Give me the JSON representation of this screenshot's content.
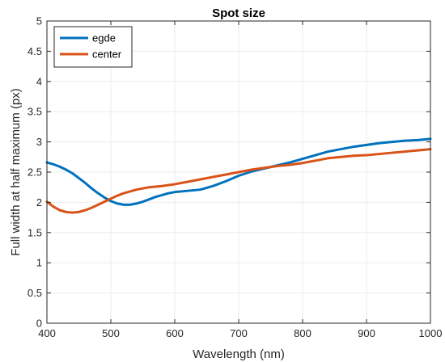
{
  "chart_data": {
    "type": "line",
    "title": "Spot size",
    "xlabel": "Wavelength (nm)",
    "ylabel": "Full width at half maximum (px)",
    "xlim": [
      400,
      1000
    ],
    "ylim": [
      0,
      5
    ],
    "x_ticks": [
      "400",
      "500",
      "600",
      "700",
      "800",
      "900",
      "1000"
    ],
    "y_ticks": [
      "0",
      "0.5",
      "1",
      "1.5",
      "2",
      "2.5",
      "3",
      "3.5",
      "4",
      "4.5",
      "5"
    ],
    "grid": true,
    "legend_position": "top-left",
    "series": [
      {
        "name": "egde",
        "color": "#0072BD",
        "x": [
          400,
          410,
          420,
          430,
          440,
          450,
          460,
          470,
          480,
          490,
          500,
          510,
          520,
          530,
          540,
          550,
          560,
          570,
          580,
          590,
          600,
          620,
          640,
          650,
          660,
          680,
          700,
          720,
          740,
          760,
          780,
          800,
          820,
          840,
          860,
          880,
          900,
          920,
          940,
          960,
          980,
          1000
        ],
        "y": [
          2.66,
          2.63,
          2.59,
          2.54,
          2.48,
          2.4,
          2.32,
          2.23,
          2.15,
          2.08,
          2.02,
          1.98,
          1.96,
          1.96,
          1.98,
          2.01,
          2.05,
          2.09,
          2.12,
          2.15,
          2.17,
          2.19,
          2.21,
          2.24,
          2.27,
          2.35,
          2.44,
          2.51,
          2.56,
          2.61,
          2.66,
          2.72,
          2.78,
          2.84,
          2.88,
          2.92,
          2.95,
          2.98,
          3.0,
          3.02,
          3.03,
          3.05
        ]
      },
      {
        "name": "center",
        "color": "#D95319",
        "x": [
          400,
          410,
          420,
          430,
          440,
          450,
          460,
          470,
          480,
          490,
          500,
          510,
          520,
          530,
          540,
          550,
          560,
          580,
          600,
          620,
          640,
          660,
          680,
          700,
          720,
          740,
          760,
          780,
          800,
          820,
          840,
          860,
          880,
          900,
          920,
          940,
          960,
          980,
          1000
        ],
        "y": [
          2.01,
          1.93,
          1.87,
          1.84,
          1.83,
          1.84,
          1.87,
          1.91,
          1.96,
          2.01,
          2.06,
          2.11,
          2.15,
          2.18,
          2.21,
          2.23,
          2.25,
          2.27,
          2.3,
          2.34,
          2.38,
          2.42,
          2.46,
          2.5,
          2.54,
          2.57,
          2.6,
          2.62,
          2.65,
          2.69,
          2.73,
          2.75,
          2.77,
          2.78,
          2.8,
          2.82,
          2.84,
          2.86,
          2.88
        ]
      }
    ]
  }
}
